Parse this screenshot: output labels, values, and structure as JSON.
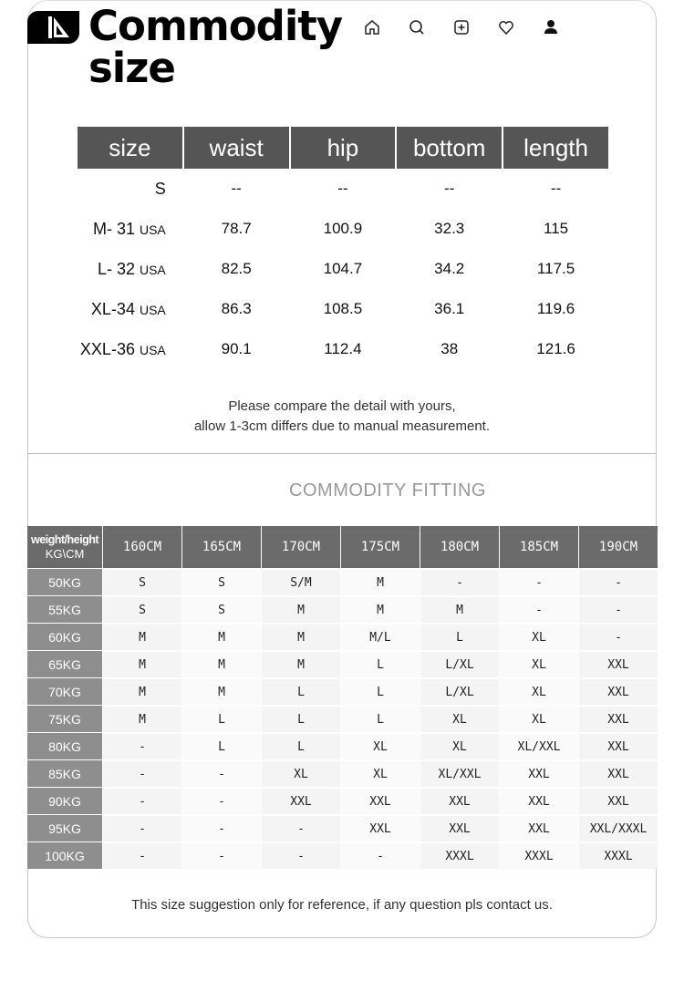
{
  "header": {
    "title": "Commodity size",
    "icons": [
      "home-icon",
      "search-icon",
      "plus-square-icon",
      "heart-icon",
      "user-icon"
    ]
  },
  "size_table": {
    "columns": [
      "size",
      "waist",
      "hip",
      "bottom",
      "length"
    ],
    "rows": [
      {
        "size": "S",
        "unit": "",
        "values": [
          "--",
          "--",
          "--",
          "--"
        ]
      },
      {
        "size": "M- 31",
        "unit": "USA",
        "values": [
          "78.7",
          "100.9",
          "32.3",
          "115"
        ]
      },
      {
        "size": "L- 32",
        "unit": "USA",
        "values": [
          "82.5",
          "104.7",
          "34.2",
          "117.5"
        ]
      },
      {
        "size": "XL-34",
        "unit": "USA",
        "values": [
          "86.3",
          "108.5",
          "36.1",
          "119.6"
        ]
      },
      {
        "size": "XXL-36",
        "unit": "USA",
        "values": [
          "90.1",
          "112.4",
          "38",
          "121.6"
        ]
      }
    ]
  },
  "note": {
    "line1": "Please compare the detail with yours,",
    "line2": "allow 1-3cm differs due to manual measurement."
  },
  "fitting": {
    "title": "COMMODITY FITTING",
    "corner_top": "weight/height",
    "corner_bottom": "KG\\CM",
    "heights": [
      "160CM",
      "165CM",
      "170CM",
      "175CM",
      "180CM",
      "185CM",
      "190CM"
    ],
    "rows": [
      {
        "weight": "50KG",
        "sizes": [
          "S",
          "S",
          "S/M",
          "M",
          "-",
          "-",
          "-"
        ]
      },
      {
        "weight": "55KG",
        "sizes": [
          "S",
          "S",
          "M",
          "M",
          "M",
          "-",
          "-"
        ]
      },
      {
        "weight": "60KG",
        "sizes": [
          "M",
          "M",
          "M",
          "M/L",
          "L",
          "XL",
          "-"
        ]
      },
      {
        "weight": "65KG",
        "sizes": [
          "M",
          "M",
          "M",
          "L",
          "L/XL",
          "XL",
          "XXL"
        ]
      },
      {
        "weight": "70KG",
        "sizes": [
          "M",
          "M",
          "L",
          "L",
          "L/XL",
          "XL",
          "XXL"
        ]
      },
      {
        "weight": "75KG",
        "sizes": [
          "M",
          "L",
          "L",
          "L",
          "XL",
          "XL",
          "XXL"
        ]
      },
      {
        "weight": "80KG",
        "sizes": [
          "-",
          "L",
          "L",
          "XL",
          "XL",
          "XL/XXL",
          "XXL"
        ]
      },
      {
        "weight": "85KG",
        "sizes": [
          "-",
          "-",
          "XL",
          "XL",
          "XL/XXL",
          "XXL",
          "XXL"
        ]
      },
      {
        "weight": "90KG",
        "sizes": [
          "-",
          "-",
          "XXL",
          "XXL",
          "XXL",
          "XXL",
          "XXL"
        ]
      },
      {
        "weight": "95KG",
        "sizes": [
          "-",
          "-",
          "-",
          "XXL",
          "XXL",
          "XXL",
          "XXL/XXXL"
        ]
      },
      {
        "weight": "100KG",
        "sizes": [
          "-",
          "-",
          "-",
          "-",
          "XXXL",
          "XXXL",
          "XXXL"
        ]
      }
    ]
  },
  "footer": {
    "note": "This size suggestion only for reference, if any question pls contact us."
  }
}
